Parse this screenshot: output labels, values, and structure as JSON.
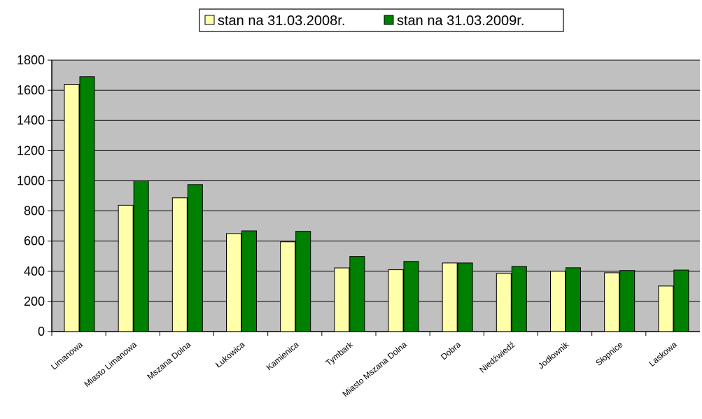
{
  "chart_data": {
    "type": "bar",
    "title": "",
    "xlabel": "",
    "ylabel": "",
    "ylim": [
      0,
      1800
    ],
    "yticks": [
      0,
      200,
      400,
      600,
      800,
      1000,
      1200,
      1400,
      1600,
      1800
    ],
    "grid": true,
    "legend": "top-center",
    "categories": [
      "Limanowa",
      "Miasto Limanowa",
      "Mszana Dolna",
      "Łukowica",
      "Kamienica",
      "Tymbark",
      "Miasto Mszana Dolna",
      "Dobra",
      "Niedźwiedź",
      "Jodłownik",
      "Słopnice",
      "Laskowa"
    ],
    "series": [
      {
        "name": "stan na 31.03.2008r.",
        "color": "#FFFFAA",
        "values": [
          1640,
          838,
          887,
          650,
          595,
          422,
          410,
          455,
          385,
          400,
          390,
          302
        ]
      },
      {
        "name": "stan na 31.03.2009r.",
        "color": "#008000",
        "values": [
          1690,
          1000,
          975,
          668,
          665,
          498,
          465,
          455,
          432,
          423,
          405,
          408
        ]
      }
    ],
    "plot_background": "#C0C0C0"
  }
}
